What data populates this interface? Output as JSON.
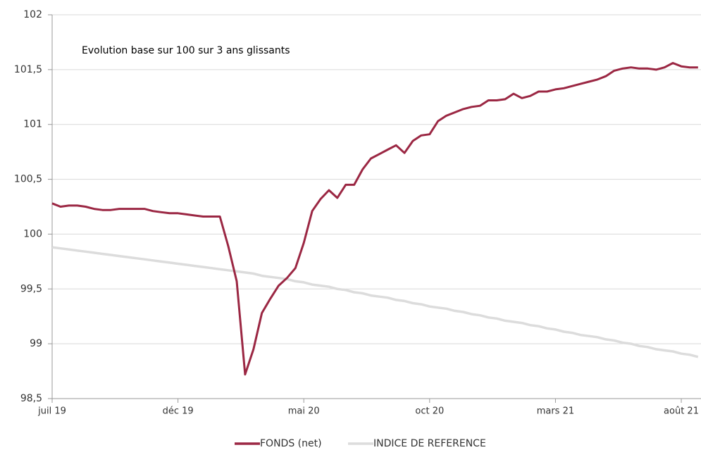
{
  "chart_data": {
    "type": "line",
    "title": "Evolution base sur 100 sur 3 ans glissants",
    "categories": [
      "juil 19",
      null,
      null,
      null,
      null,
      null,
      null,
      null,
      null,
      null,
      null,
      null,
      null,
      null,
      null,
      "déc 19",
      null,
      null,
      null,
      null,
      null,
      null,
      null,
      null,
      null,
      null,
      null,
      null,
      null,
      null,
      "mai 20",
      null,
      null,
      null,
      null,
      null,
      null,
      null,
      null,
      null,
      null,
      null,
      null,
      null,
      null,
      "oct 20",
      null,
      null,
      null,
      null,
      null,
      null,
      null,
      null,
      null,
      null,
      null,
      null,
      null,
      null,
      "mars 21",
      null,
      null,
      null,
      null,
      null,
      null,
      null,
      null,
      null,
      null,
      null,
      null,
      null,
      null,
      "août 21",
      null,
      null
    ],
    "series": [
      {
        "name": "FONDS (net)",
        "color": "#9b2743",
        "values": [
          100.28,
          100.25,
          100.26,
          100.26,
          100.25,
          100.23,
          100.22,
          100.22,
          100.23,
          100.23,
          100.23,
          100.23,
          100.21,
          100.2,
          100.19,
          100.19,
          100.18,
          100.17,
          100.16,
          100.16,
          100.16,
          99.89,
          99.57,
          98.72,
          98.95,
          99.28,
          99.41,
          99.53,
          99.6,
          99.69,
          99.92,
          100.21,
          100.32,
          100.4,
          100.33,
          100.45,
          100.45,
          100.59,
          100.69,
          100.73,
          100.77,
          100.81,
          100.74,
          100.85,
          100.9,
          100.91,
          101.03,
          101.08,
          101.11,
          101.14,
          101.16,
          101.17,
          101.22,
          101.22,
          101.23,
          101.28,
          101.24,
          101.26,
          101.3,
          101.3,
          101.32,
          101.33,
          101.35,
          101.37,
          101.39,
          101.41,
          101.44,
          101.49,
          101.51,
          101.52,
          101.51,
          101.51,
          101.5,
          101.52,
          101.56,
          101.53,
          101.52,
          101.52
        ]
      },
      {
        "name": "INDICE DE REFERENCE",
        "color": "#dcdcdc",
        "values": [
          99.88,
          99.87,
          99.86,
          99.85,
          99.84,
          99.83,
          99.82,
          99.81,
          99.8,
          99.79,
          99.78,
          99.77,
          99.76,
          99.75,
          99.74,
          99.73,
          99.72,
          99.71,
          99.7,
          99.69,
          99.68,
          99.67,
          99.66,
          99.65,
          99.64,
          99.62,
          99.61,
          99.6,
          99.59,
          99.57,
          99.56,
          99.54,
          99.53,
          99.52,
          99.5,
          99.49,
          99.47,
          99.46,
          99.44,
          99.43,
          99.42,
          99.4,
          99.39,
          99.37,
          99.36,
          99.34,
          99.33,
          99.32,
          99.3,
          99.29,
          99.27,
          99.26,
          99.24,
          99.23,
          99.21,
          99.2,
          99.19,
          99.17,
          99.16,
          99.14,
          99.13,
          99.11,
          99.1,
          99.08,
          99.07,
          99.06,
          99.04,
          99.03,
          99.01,
          99.0,
          98.98,
          98.97,
          98.95,
          98.94,
          98.93,
          98.91,
          98.9,
          98.88
        ]
      }
    ],
    "ylim": [
      98.5,
      102
    ],
    "yticks": [
      {
        "value": 98.5,
        "label": "98,5"
      },
      99,
      {
        "value": 99.5,
        "label": "99,5"
      },
      100,
      {
        "value": 100.5,
        "label": "100,5"
      },
      101,
      {
        "value": 101.5,
        "label": "101,5"
      },
      102
    ],
    "grid": true
  }
}
